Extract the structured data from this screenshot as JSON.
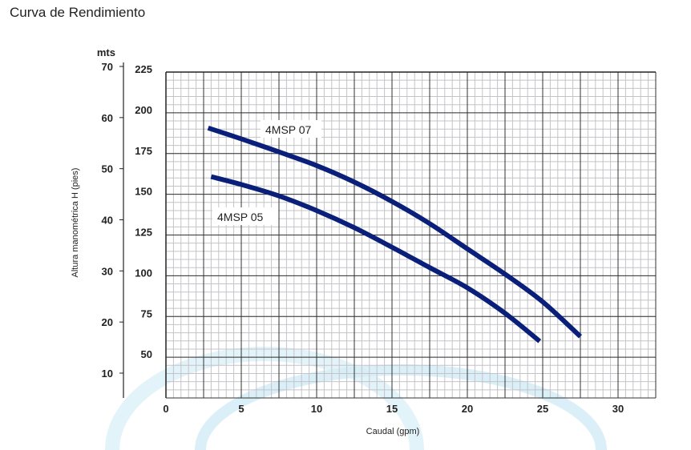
{
  "title": "Curva de Rendimiento",
  "chart_data": {
    "type": "line",
    "title": "Curva de Rendimiento",
    "xlabel": "Caudal (gpm)",
    "ylabel": "Altura manométrica H (pies)",
    "y2label": "mts",
    "xlim": [
      0,
      32.5
    ],
    "ylim": [
      25,
      225
    ],
    "y2lim": [
      7.6,
      70
    ],
    "xticks": [
      0,
      5,
      10,
      15,
      20,
      25,
      30
    ],
    "yticks": [
      50,
      75,
      100,
      125,
      150,
      175,
      200,
      225
    ],
    "y2ticks": [
      10,
      20,
      30,
      40,
      50,
      60,
      70
    ],
    "grid": true,
    "line_color": "#0a1f7a",
    "series": [
      {
        "name": "4MSP 07",
        "x": [
          2.8,
          5,
          7.5,
          10,
          12.5,
          15,
          17.5,
          20,
          22.5,
          25,
          27.5
        ],
        "y": [
          190.7,
          184,
          176,
          167.6,
          157.5,
          145.6,
          132,
          116.5,
          101,
          84,
          62.7
        ]
      },
      {
        "name": "4MSP 05",
        "x": [
          3,
          5,
          7.5,
          10,
          12.5,
          15,
          17.5,
          20,
          22.5,
          24.8
        ],
        "y": [
          160.8,
          156,
          149,
          140,
          129.5,
          117.5,
          105,
          92.6,
          77,
          59.8
        ]
      }
    ]
  }
}
